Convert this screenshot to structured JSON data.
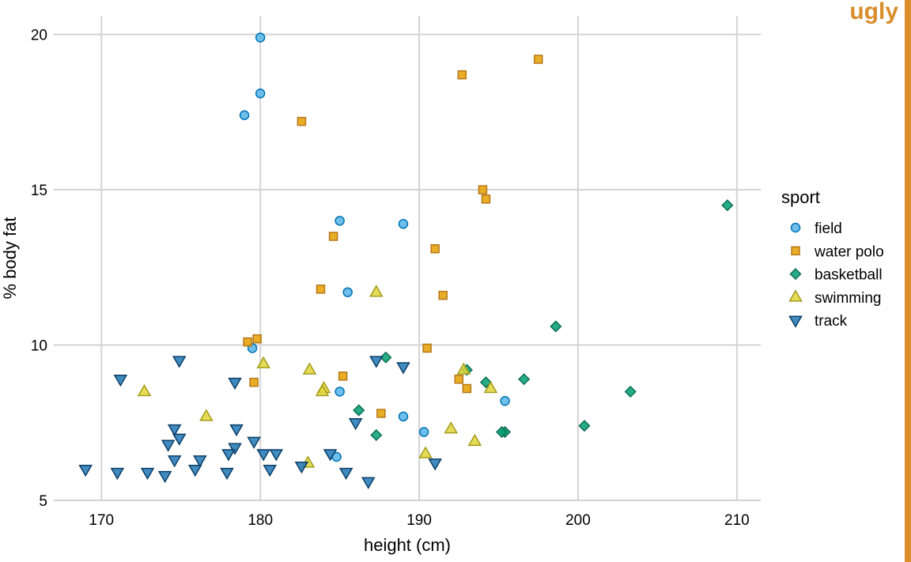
{
  "badge": {
    "text": "ugly",
    "color": "#D98E2B"
  },
  "chart_data": {
    "type": "scatter",
    "title": "",
    "xlabel": "height (cm)",
    "ylabel": "% body fat",
    "xlim": [
      167,
      211.5
    ],
    "ylim": [
      5,
      20.6
    ],
    "xticks": [
      170,
      180,
      190,
      200,
      210
    ],
    "yticks": [
      5,
      10,
      15,
      20
    ],
    "grid": true,
    "legend_title": "sport",
    "legend_position": "right",
    "series": [
      {
        "name": "field",
        "marker": "circle",
        "fill": "#56B4E9",
        "stroke": "#0072B2",
        "points": [
          [
            180,
            19.9
          ],
          [
            180,
            18.1
          ],
          [
            179,
            17.4
          ],
          [
            185,
            14
          ],
          [
            189,
            13.9
          ],
          [
            185.5,
            11.7
          ],
          [
            179.5,
            9.9
          ],
          [
            185,
            8.5
          ],
          [
            189,
            7.7
          ],
          [
            190.3,
            7.2
          ],
          [
            195.4,
            8.2
          ],
          [
            184.8,
            6.4
          ]
        ]
      },
      {
        "name": "water polo",
        "marker": "square",
        "fill": "#E69F00",
        "stroke": "#B5781A",
        "points": [
          [
            197.5,
            19.2
          ],
          [
            192.7,
            18.7
          ],
          [
            182.6,
            17.2
          ],
          [
            194,
            15
          ],
          [
            194.2,
            14.7
          ],
          [
            184.6,
            13.5
          ],
          [
            191,
            13.1
          ],
          [
            191.5,
            11.6
          ],
          [
            183.8,
            11.8
          ],
          [
            179.2,
            10.1
          ],
          [
            179.8,
            10.2
          ],
          [
            190.5,
            9.9
          ],
          [
            185.2,
            9
          ],
          [
            179.6,
            8.8
          ],
          [
            192.5,
            8.9
          ],
          [
            193,
            8.6
          ],
          [
            187.6,
            7.8
          ]
        ]
      },
      {
        "name": "basketball",
        "marker": "diamond",
        "fill": "#009E73",
        "stroke": "#0D6E52",
        "points": [
          [
            209.4,
            14.5
          ],
          [
            198.6,
            10.6
          ],
          [
            187.9,
            9.6
          ],
          [
            193,
            9.2
          ],
          [
            194.2,
            8.8
          ],
          [
            196.6,
            8.9
          ],
          [
            203.3,
            8.5
          ],
          [
            186.2,
            7.9
          ],
          [
            187.3,
            7.1
          ],
          [
            195.4,
            7.2
          ],
          [
            195.2,
            7.2
          ],
          [
            200.4,
            7.4
          ]
        ]
      },
      {
        "name": "swimming",
        "marker": "triangle-up",
        "fill": "#E1D53A",
        "stroke": "#A39B1B",
        "points": [
          [
            187.3,
            11.7
          ],
          [
            180.2,
            9.4
          ],
          [
            183.1,
            9.2
          ],
          [
            192.8,
            9.2
          ],
          [
            172.7,
            8.5
          ],
          [
            184,
            8.6
          ],
          [
            183.9,
            8.5
          ],
          [
            194.5,
            8.6
          ],
          [
            176.6,
            7.7
          ],
          [
            192,
            7.3
          ],
          [
            193.5,
            6.9
          ],
          [
            190.4,
            6.5
          ],
          [
            183,
            6.2
          ]
        ]
      },
      {
        "name": "track",
        "marker": "triangle-down",
        "fill": "#1F77B4",
        "stroke": "#0B3D66",
        "points": [
          [
            171.2,
            8.9
          ],
          [
            174.9,
            9.5
          ],
          [
            178.4,
            8.8
          ],
          [
            187.3,
            9.5
          ],
          [
            189,
            9.3
          ],
          [
            174.6,
            7.3
          ],
          [
            174.9,
            7
          ],
          [
            178.5,
            7.3
          ],
          [
            174.2,
            6.8
          ],
          [
            178.4,
            6.7
          ],
          [
            179.6,
            6.9
          ],
          [
            180.2,
            6.5
          ],
          [
            181,
            6.5
          ],
          [
            186,
            7.5
          ],
          [
            169,
            6
          ],
          [
            171,
            5.9
          ],
          [
            172.9,
            5.9
          ],
          [
            174,
            5.8
          ],
          [
            174.6,
            6.3
          ],
          [
            175.9,
            6
          ],
          [
            176.2,
            6.3
          ],
          [
            177.9,
            5.9
          ],
          [
            178,
            6.5
          ],
          [
            180.6,
            6
          ],
          [
            182.6,
            6.1
          ],
          [
            184.4,
            6.5
          ],
          [
            185.4,
            5.9
          ],
          [
            186.8,
            5.6
          ],
          [
            191,
            6.2
          ]
        ]
      }
    ]
  }
}
